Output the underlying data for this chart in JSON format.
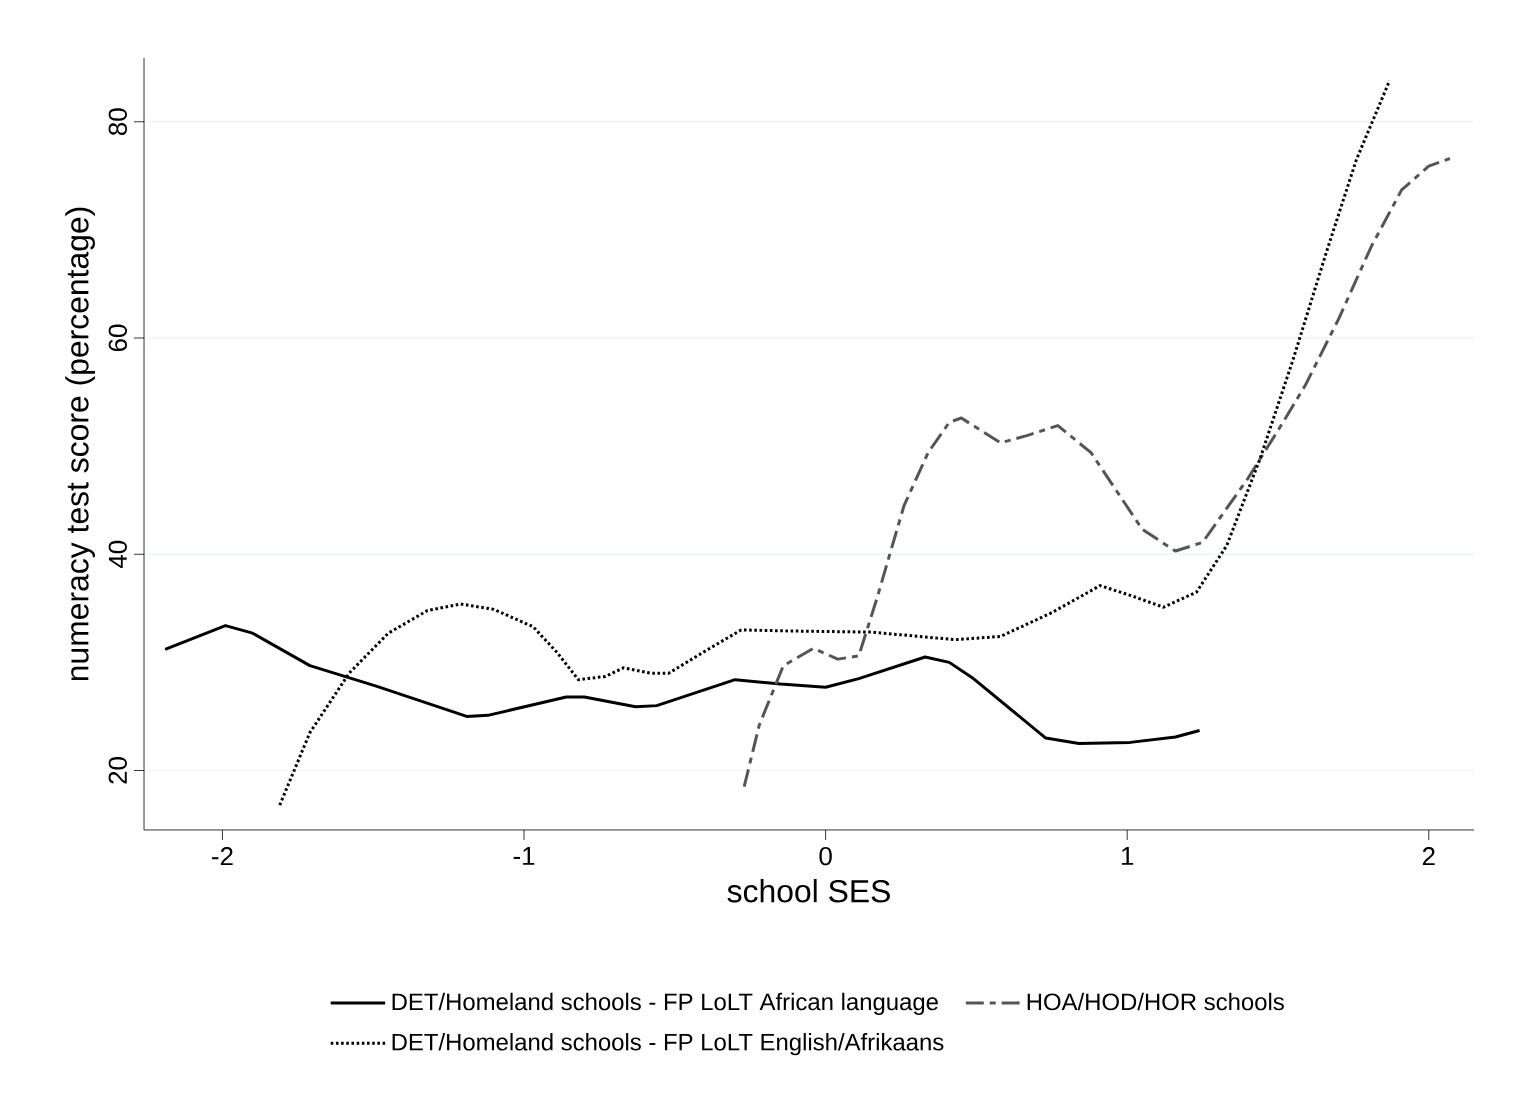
{
  "chart_data": {
    "type": "line",
    "xlabel": "school SES",
    "ylabel": "numeracy test score (percentage)",
    "xlim": [
      -2.26,
      2.15
    ],
    "ylim": [
      14.5,
      85.9
    ],
    "xticks": [
      -2,
      -1,
      0,
      1,
      2
    ],
    "yticks": [
      20,
      40,
      60,
      80
    ],
    "grid": "y",
    "legend": "bottom",
    "series": [
      {
        "name": "DET/Homeland schools - FP LoLT African language",
        "color": "#000000",
        "line_style": "solid",
        "x": [
          -2.19,
          -1.99,
          -1.9,
          -1.71,
          -1.49,
          -1.19,
          -1.12,
          -0.86,
          -0.8,
          -0.63,
          -0.56,
          -0.3,
          -0.15,
          0,
          0.11,
          0.33,
          0.41,
          0.49,
          0.73,
          0.84,
          1.01,
          1.16,
          1.24
        ],
        "values": [
          31.2,
          33.4,
          32.7,
          29.7,
          27.8,
          25.0,
          25.1,
          26.8,
          26.8,
          25.9,
          26.0,
          28.4,
          28.0,
          27.7,
          28.5,
          30.5,
          30.0,
          28.5,
          23.0,
          22.5,
          22.6,
          23.1,
          23.7
        ]
      },
      {
        "name": "HOA/HOD/HOR schools",
        "color": "#555555",
        "line_style": "dashed",
        "x": [
          -0.27,
          -0.22,
          -0.14,
          -0.04,
          0.04,
          0.11,
          0.17,
          0.26,
          0.34,
          0.41,
          0.45,
          0.58,
          0.67,
          0.77,
          0.88,
          1.05,
          1.16,
          1.25,
          1.4,
          1.51,
          1.59,
          1.7,
          1.81,
          1.91,
          2.0,
          2.07
        ],
        "values": [
          18.5,
          24.2,
          29.7,
          31.3,
          30.3,
          30.6,
          35.9,
          44.5,
          49.4,
          52.2,
          52.6,
          50.3,
          51.0,
          51.9,
          49.4,
          42.3,
          40.3,
          41.1,
          47.0,
          51.9,
          55.6,
          61.7,
          68.5,
          73.7,
          75.9,
          76.6
        ]
      },
      {
        "name": "DET/Homeland schools - FP LoLT English/Afrikaans",
        "color": "#000000",
        "line_style": "dotted",
        "x": [
          -1.81,
          -1.71,
          -1.58,
          -1.45,
          -1.32,
          -1.21,
          -1.1,
          -0.97,
          -0.89,
          -0.82,
          -0.73,
          -0.67,
          -0.58,
          -0.52,
          -0.39,
          -0.28,
          -0.11,
          0.15,
          0.43,
          0.58,
          0.75,
          0.91,
          1.01,
          1.12,
          1.23,
          1.33,
          1.44,
          1.55,
          1.66,
          1.76,
          1.87
        ],
        "values": [
          16.8,
          23.5,
          29.0,
          32.7,
          34.8,
          35.4,
          34.9,
          33.3,
          30.9,
          28.4,
          28.7,
          29.5,
          29.0,
          29.0,
          31.2,
          33.0,
          32.9,
          32.8,
          32.1,
          32.4,
          34.6,
          37.1,
          36.2,
          35.1,
          36.5,
          40.8,
          48.8,
          58.0,
          67.9,
          76.5,
          83.8
        ]
      }
    ]
  }
}
